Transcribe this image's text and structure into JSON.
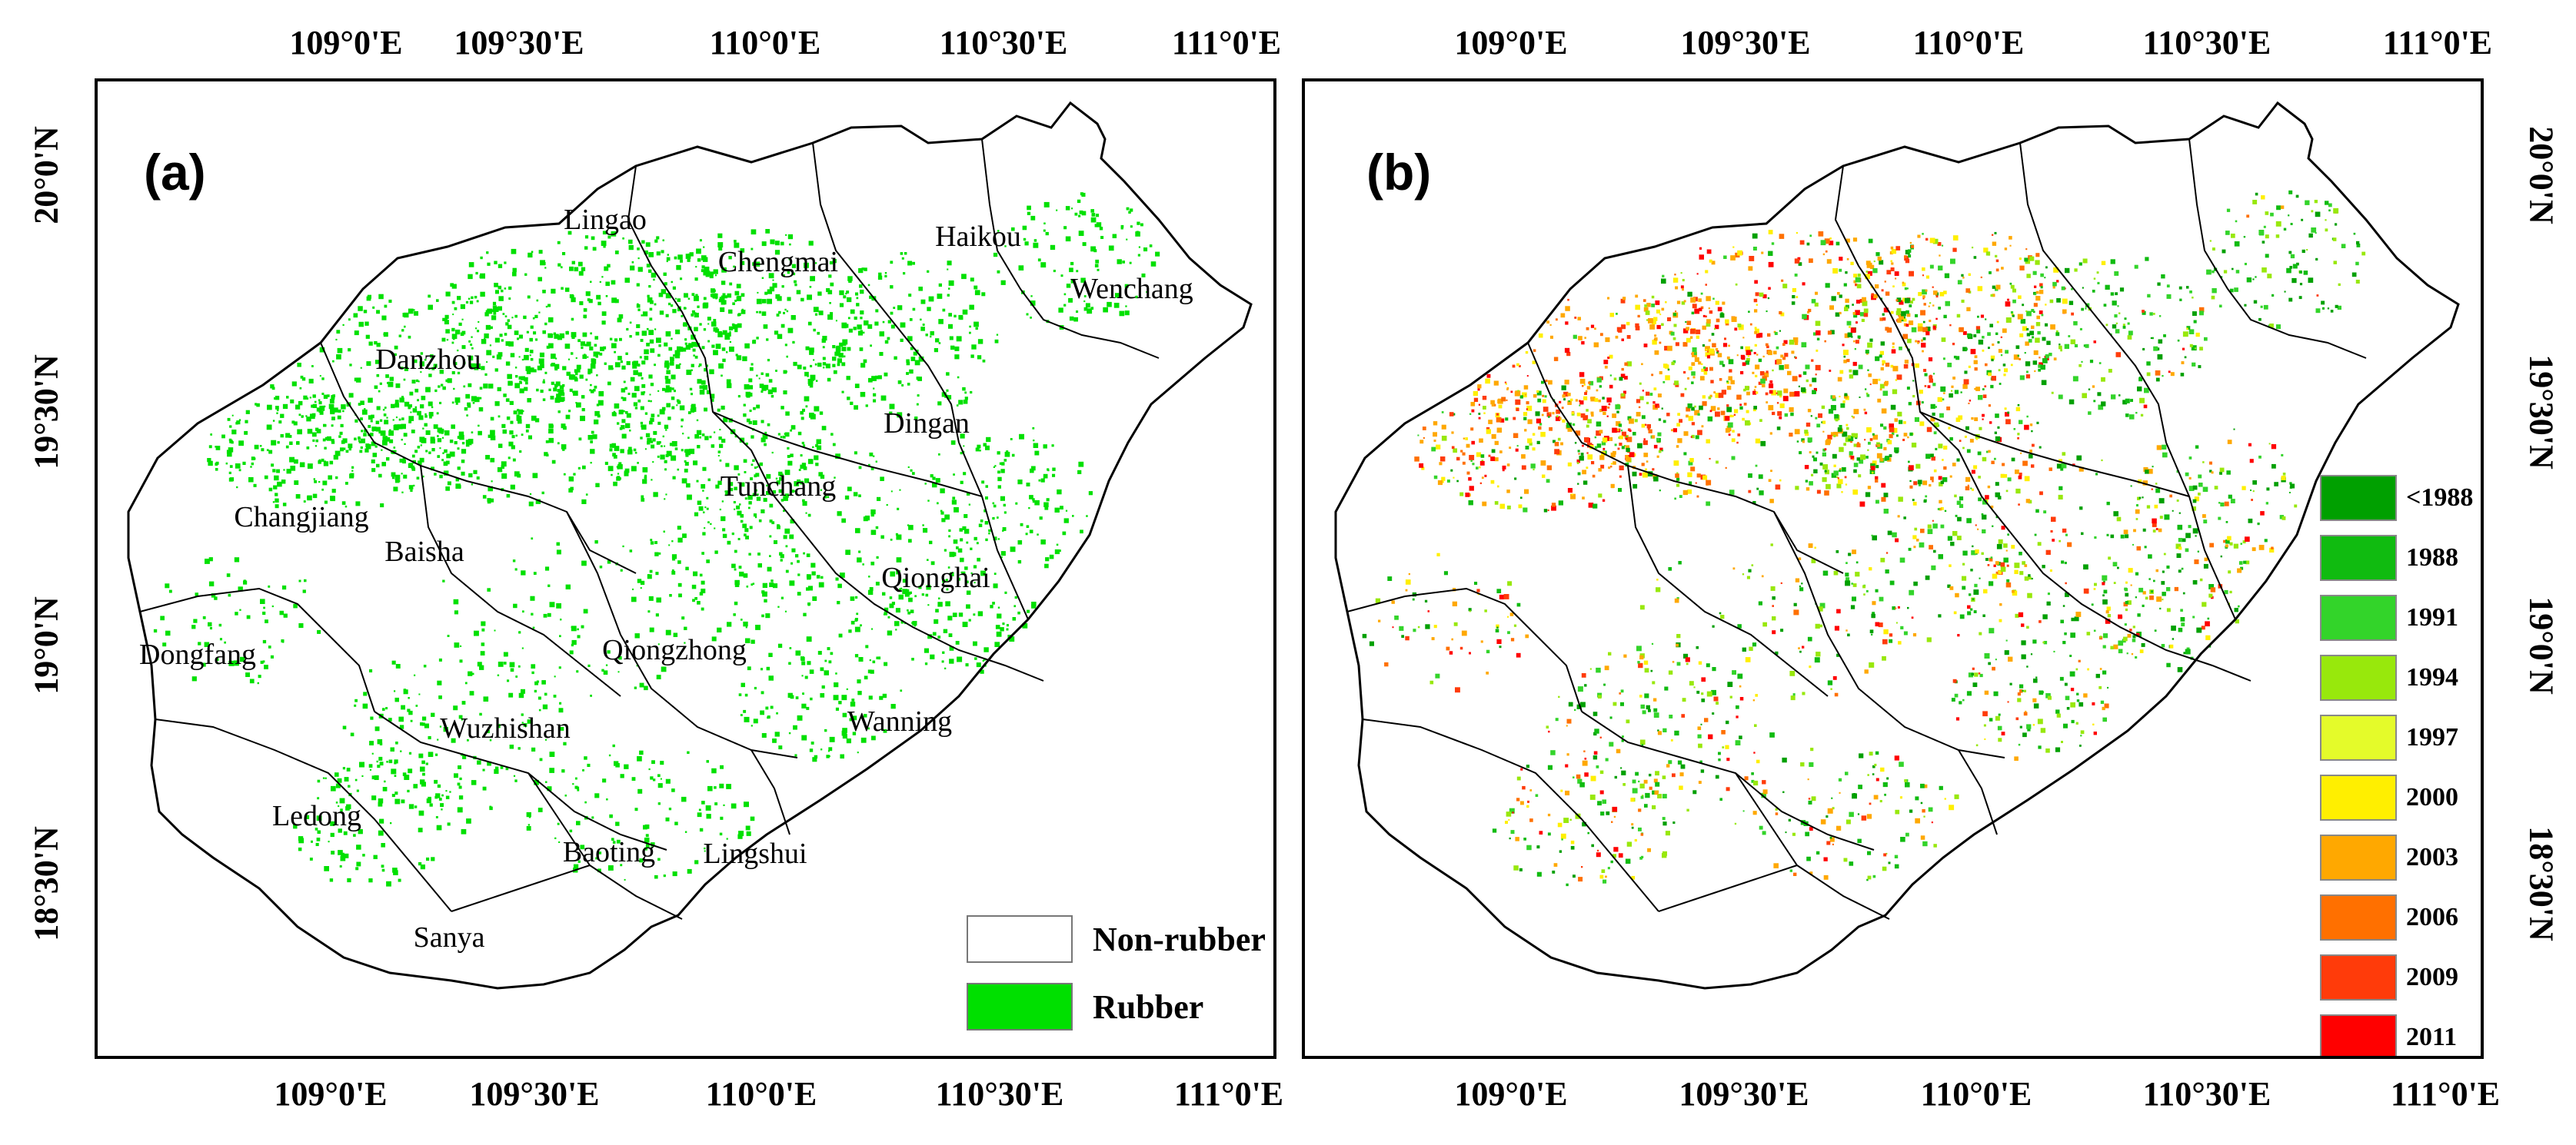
{
  "panels": {
    "a": {
      "label": "(a)"
    },
    "b": {
      "label": "(b)"
    }
  },
  "lon_ticks": [
    "109°0'E",
    "109°30'E",
    "110°0'E",
    "110°30'E",
    "111°0'E"
  ],
  "lat_ticks": [
    "20°0'N",
    "19°30'N",
    "19°0'N",
    "18°30'N"
  ],
  "cities": [
    "Lingao",
    "Chengmai",
    "Haikou",
    "Wenchang",
    "Danzhou",
    "Dingan",
    "Tunchang",
    "Changjiang",
    "Baisha",
    "Qionghai",
    "Dongfang",
    "Qiongzhong",
    "Wuzhishan",
    "Wanning",
    "Ledong",
    "Baoting",
    "Lingshui",
    "Sanya"
  ],
  "legend_a": [
    {
      "label": "Non-rubber",
      "color": "#ffffff"
    },
    {
      "label": "Rubber",
      "color": "#00e000"
    }
  ],
  "legend_b": [
    {
      "label": "<1988",
      "color": "#00a000"
    },
    {
      "label": "1988",
      "color": "#10bb10"
    },
    {
      "label": "1991",
      "color": "#33d42a"
    },
    {
      "label": "1994",
      "color": "#98e80c"
    },
    {
      "label": "1997",
      "color": "#e4fb2a"
    },
    {
      "label": "2000",
      "color": "#ffef00"
    },
    {
      "label": "2003",
      "color": "#ffa800"
    },
    {
      "label": "2006",
      "color": "#ff7000"
    },
    {
      "label": "2009",
      "color": "#ff3b0a"
    },
    {
      "label": "2011",
      "color": "#ff0000"
    }
  ]
}
